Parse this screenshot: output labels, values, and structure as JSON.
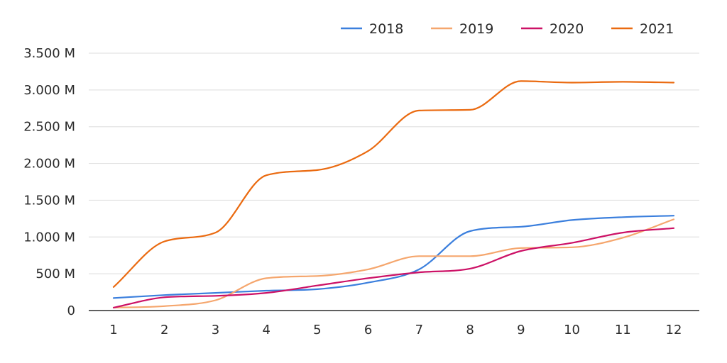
{
  "chart_data": {
    "type": "line",
    "title": "",
    "xlabel": "",
    "ylabel": "",
    "categories": [
      "1",
      "2",
      "3",
      "4",
      "5",
      "6",
      "7",
      "8",
      "9",
      "10",
      "11",
      "12"
    ],
    "yticks": [
      {
        "value": 0,
        "label": "0"
      },
      {
        "value": 500,
        "label": "500 M"
      },
      {
        "value": 1000,
        "label": "1.000 M"
      },
      {
        "value": 1500,
        "label": "1.500 M"
      },
      {
        "value": 2000,
        "label": "2.000 M"
      },
      {
        "value": 2500,
        "label": "2.500 M"
      },
      {
        "value": 3000,
        "label": "3.000 M"
      },
      {
        "value": 3500,
        "label": "3.500 M"
      }
    ],
    "ylim": [
      0,
      3500
    ],
    "grid": true,
    "legend_position": "top-right",
    "series": [
      {
        "name": "2018",
        "color": "#3b7fdd",
        "values": [
          170,
          210,
          240,
          270,
          290,
          380,
          560,
          1080,
          1140,
          1230,
          1270,
          1290
        ]
      },
      {
        "name": "2019",
        "color": "#f5a66d",
        "values": [
          40,
          60,
          140,
          440,
          470,
          560,
          740,
          740,
          850,
          860,
          990,
          1240
        ]
      },
      {
        "name": "2020",
        "color": "#cc1166",
        "values": [
          40,
          180,
          200,
          240,
          340,
          440,
          520,
          570,
          810,
          920,
          1060,
          1120
        ]
      },
      {
        "name": "2021",
        "color": "#ea6a10",
        "values": [
          320,
          940,
          1060,
          1840,
          1910,
          2170,
          2720,
          2730,
          3120,
          3100,
          3110,
          3100
        ]
      }
    ]
  }
}
